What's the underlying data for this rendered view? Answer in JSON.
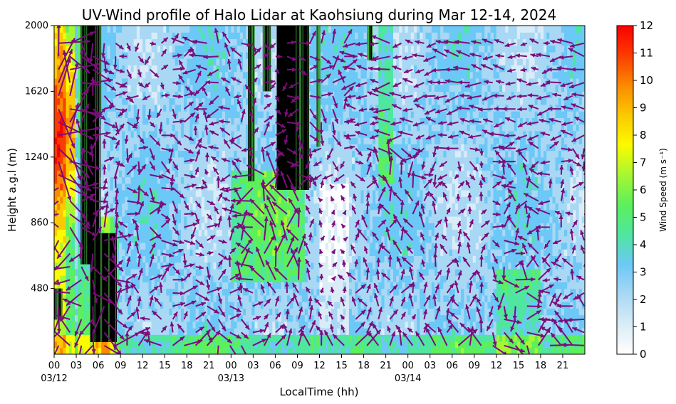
{
  "chart_data": {
    "type": "heatmap",
    "title": "UV-Wind profile of Halo Lidar at Kaohsiung during Mar 12-14, 2024",
    "xlabel": "LocalTime (hh)",
    "ylabel": "Height a.g.l (m)",
    "xlim": [
      0,
      72
    ],
    "ylim": [
      100,
      2000
    ],
    "x_ticks": [
      0,
      3,
      6,
      9,
      12,
      15,
      18,
      21,
      24,
      27,
      30,
      33,
      36,
      39,
      42,
      45,
      48,
      51,
      54,
      57,
      60,
      63,
      66,
      69
    ],
    "x_tick_labels": [
      "00",
      "03",
      "06",
      "09",
      "12",
      "15",
      "18",
      "21",
      "00",
      "03",
      "06",
      "09",
      "12",
      "15",
      "18",
      "21",
      "00",
      "03",
      "06",
      "09",
      "12",
      "15",
      "18",
      "21"
    ],
    "date_ticks": [
      0,
      24,
      48
    ],
    "date_labels": [
      "03/12",
      "03/13",
      "03/14"
    ],
    "y_ticks": [
      480,
      860,
      1240,
      1620,
      2000
    ],
    "y_tick_labels": [
      "480",
      "860",
      "1240",
      "1620",
      "2000"
    ],
    "colorbar": {
      "label": "Wind Speed (m s⁻¹)",
      "range": [
        0,
        12
      ],
      "ticks": [
        0,
        1,
        2,
        3,
        4,
        5,
        6,
        7,
        8,
        9,
        10,
        11,
        12
      ],
      "tick_labels": [
        "0",
        "1",
        "2",
        "3",
        "4",
        "5",
        "6",
        "7",
        "8",
        "9",
        "10",
        "11",
        "12"
      ],
      "colors": [
        "#ffffff",
        "#d9ecf7",
        "#a9d8f5",
        "#6cc8f6",
        "#4fe6a0",
        "#5cf05c",
        "#a6f733",
        "#fbfb00",
        "#fbc900",
        "#fb8a00",
        "#fb3c00",
        "#fb0000"
      ]
    },
    "vector_color": "#7a0e7a",
    "missing_color": "#000000",
    "grid": false,
    "legend": "none"
  }
}
